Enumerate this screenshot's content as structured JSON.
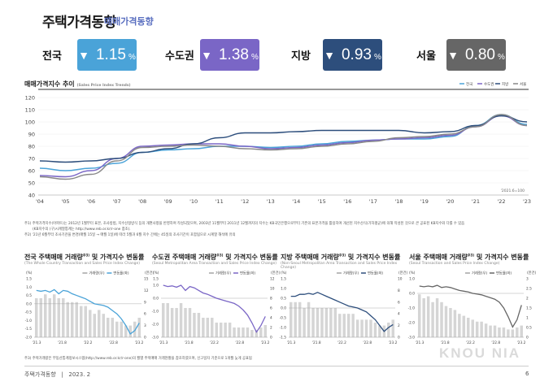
{
  "header": {
    "title": "주택가격동향",
    "subtitle": "매매가격동향"
  },
  "kpis": [
    {
      "label": "전국",
      "value": "1.15",
      "unit": "%",
      "arrow": "▼",
      "color": "#4aa3d8"
    },
    {
      "label": "수도권",
      "value": "1.38",
      "unit": "%",
      "arrow": "▼",
      "color": "#7a66c6"
    },
    {
      "label": "지방",
      "value": "0.93",
      "unit": "%",
      "arrow": "▼",
      "color": "#2d4e7c"
    },
    {
      "label": "서울",
      "value": "0.80",
      "unit": "%",
      "arrow": "▼",
      "color": "#666666"
    }
  ],
  "main_chart": {
    "title": "매매가격지수 추이",
    "title_sub": "(Sales Price Index Trends)",
    "base_note": "'2021.6=100"
  },
  "notes": {
    "line1": "주1) 주택가격지수(아파트)는 2012년 1월부터 표본, 조사방법, 지수산정방식 등의 개편사항을 반영하여 작성되었으며, 2003년 11월부터 2011년 12월까지의 지수는 KB국민은행으로부터 기존의 표본가격을 활용하여 개선된 지수산식(가하평균)에 의해 작성된 것으로 큰 공표된 KB지수와 다를 수 있음",
    "line2": "(KB지수의 (구)시계열통계는 http://www.reb.or.kr/r-one 참조).",
    "line3": "주2) '21년 6월부터 조사기관을 변경(매월 15일 → 매월 1일)에 따라 5월과 6월 지수 간에는 45일의 조사기간이 포함됨으로 시계열 해석에 유의",
    "line4": "주3) 주택거래량은 부동산통계정보시스템(http://www.reb.or.kr/r-one)의 월별 주택매매 거래현황을 참조하였으며, 신고일자 기준으로 1개월 늦게 공표됨"
  },
  "small_panels": [
    {
      "title": "전국 주택매매 거래량",
      "sup": "주3)",
      "title_tail": " 및 가격지수 변동률",
      "sub": "(The Whole Country Transaction and Sales Price Index Change)"
    },
    {
      "title": "수도권 주택매매 거래량",
      "sup": "주3)",
      "title_tail": " 및 가격지수 변동률",
      "sub": "(Seoul Metropolitan Area Transaction and Sales Price Index Change)"
    },
    {
      "title": "지방 주택매매 거래량",
      "sup": "주3)",
      "title_tail": " 및 가격지수 변동률",
      "sub": "(Non-Seoul Metropolitan Area Transaction and Sales Price Index Change)"
    },
    {
      "title": "서울 주택매매 거래량",
      "sup": "주3)",
      "title_tail": " 및 가격지수 변동률",
      "sub": "(Seoul Transaction and Sales Price Index Change)"
    }
  ],
  "footer": {
    "left": "주택가격동향",
    "sep": "|",
    "date": "2023. 2",
    "page": "6",
    "watermark": "KNOU NIA"
  },
  "chart_data": [
    {
      "type": "line",
      "title": "매매가격지수 추이",
      "x": [
        "'04",
        "'05",
        "'06",
        "'07",
        "'08",
        "'09",
        "'10",
        "'11",
        "'12",
        "'13",
        "'14",
        "'15",
        "'16",
        "'17",
        "'18",
        "'19",
        "'20",
        "'21",
        "'22",
        "'23"
      ],
      "ylim": [
        40,
        120
      ],
      "yticks": [
        40,
        50,
        60,
        70,
        80,
        90,
        100,
        110,
        120
      ],
      "legend_position": "top-right",
      "series": [
        {
          "name": "전국",
          "color": "#4aa3d8",
          "values": [
            62,
            60,
            62,
            66,
            75,
            77,
            78,
            80,
            80,
            79,
            80,
            82,
            84,
            85,
            86,
            86,
            88,
            97,
            106,
            98
          ]
        },
        {
          "name": "수도권",
          "color": "#7a66c6",
          "values": [
            56,
            55,
            60,
            70,
            80,
            81,
            82,
            82,
            80,
            78,
            79,
            81,
            83,
            85,
            86,
            87,
            89,
            96,
            105,
            97
          ]
        },
        {
          "name": "지방",
          "color": "#2d4e7c",
          "values": [
            68,
            67,
            68,
            70,
            75,
            78,
            82,
            87,
            91,
            91,
            92,
            93,
            93,
            93,
            93,
            91,
            92,
            97,
            105,
            100
          ]
        },
        {
          "name": "서울",
          "color": "#888888",
          "values": [
            55,
            53,
            57,
            68,
            79,
            80,
            81,
            80,
            78,
            77,
            78,
            80,
            82,
            84,
            87,
            88,
            90,
            96,
            106,
            97
          ]
        }
      ]
    },
    {
      "type": "bar",
      "title": "전국 주택매매 거래량 및 가격지수 변동률",
      "categories": [
        "'21.3",
        "'21.8",
        "'22.2",
        "'22.8",
        "'23.2"
      ],
      "legend": [
        "거래량(우)",
        "변동률(좌)"
      ],
      "left_axis": {
        "label": "(%)",
        "range": [
          -2.0,
          1.5
        ],
        "ticks": [
          -2.0,
          -1.5,
          -1.0,
          -0.5,
          0.0,
          0.5,
          1.0,
          1.5
        ]
      },
      "right_axis": {
        "label": "(만건)",
        "range": [
          0,
          15
        ],
        "ticks": [
          0,
          3,
          6,
          9,
          12,
          15
        ]
      },
      "bars_right": [
        10,
        10,
        11,
        10,
        11,
        10,
        10,
        9,
        9,
        9,
        8,
        8,
        7,
        6,
        7,
        6,
        5,
        5,
        4,
        4,
        3,
        3,
        4,
        5
      ],
      "line_left": [
        0.8,
        0.75,
        0.8,
        0.7,
        0.85,
        0.6,
        0.8,
        0.75,
        0.6,
        0.5,
        0.4,
        0.3,
        0.15,
        0.0,
        -0.05,
        -0.1,
        -0.2,
        -0.4,
        -0.6,
        -0.9,
        -1.3,
        -1.8,
        -1.6,
        -1.15
      ],
      "line_color": "#4aa3d8"
    },
    {
      "type": "bar",
      "title": "수도권 주택매매 거래량 및 가격지수 변동률",
      "categories": [
        "'21.3",
        "'21.8",
        "'22.2",
        "'22.8",
        "'23.2"
      ],
      "legend": [
        "거래량(우)",
        "변동률(좌)"
      ],
      "left_axis": {
        "label": "(%)",
        "range": [
          -3.0,
          1.5
        ],
        "ticks": [
          -3.0,
          -2.0,
          -1.0,
          0.0,
          1.0,
          1.5
        ]
      },
      "right_axis": {
        "label": "(만건)",
        "range": [
          0,
          12
        ],
        "ticks": [
          0,
          2,
          4,
          6,
          8,
          10,
          12
        ]
      },
      "bars_right": [
        7,
        7,
        6,
        6,
        7,
        6,
        6,
        5,
        5,
        4,
        4,
        4,
        3,
        3,
        3,
        3,
        2,
        2,
        2,
        2,
        1.5,
        1.5,
        2,
        2.5
      ],
      "line_left": [
        1.0,
        0.9,
        0.95,
        0.85,
        1.0,
        0.6,
        0.9,
        0.8,
        0.6,
        0.4,
        0.3,
        0.15,
        0.0,
        -0.1,
        -0.2,
        -0.3,
        -0.4,
        -0.6,
        -0.9,
        -1.3,
        -1.9,
        -2.6,
        -2.1,
        -1.4
      ],
      "line_color": "#7a66c6"
    },
    {
      "type": "bar",
      "title": "지방 주택매매 거래량 및 가격지수 변동률",
      "categories": [
        "'21.3",
        "'21.8",
        "'22.2",
        "'22.8",
        "'23.2"
      ],
      "legend": [
        "거래량(우)",
        "변동률(좌)"
      ],
      "left_axis": {
        "label": "(%)",
        "range": [
          -1.5,
          1.5
        ],
        "ticks": [
          -1.5,
          -1.0,
          -0.5,
          0.0,
          0.5,
          1.0,
          1.5
        ]
      },
      "right_axis": {
        "label": "(만건)",
        "range": [
          0,
          10
        ],
        "ticks": [
          0,
          2,
          4,
          6,
          8,
          10
        ]
      },
      "bars_right": [
        6,
        6,
        6,
        5,
        6,
        5,
        5,
        5,
        5,
        5,
        5,
        4,
        4,
        4,
        4,
        3,
        3,
        3,
        3,
        2.5,
        2,
        2,
        2.5,
        3
      ],
      "line_left": [
        0.6,
        0.6,
        0.7,
        0.7,
        0.75,
        0.7,
        0.8,
        0.7,
        0.6,
        0.5,
        0.4,
        0.3,
        0.2,
        0.1,
        0.05,
        0.0,
        -0.1,
        -0.2,
        -0.4,
        -0.6,
        -0.9,
        -1.2,
        -1.0,
        -0.85
      ],
      "line_color": "#2d4e7c"
    },
    {
      "type": "bar",
      "title": "서울 주택매매 거래량 및 가격지수 변동률",
      "categories": [
        "'21.3",
        "'21.8",
        "'22.2",
        "'22.8",
        "'23.2"
      ],
      "legend": [
        "거래량(우)",
        "변동률(좌)"
      ],
      "left_axis": {
        "label": "(%)",
        "range": [
          -3.0,
          1.0
        ],
        "ticks": [
          -3.0,
          -2.0,
          -1.0,
          0.0,
          1.0
        ]
      },
      "right_axis": {
        "label": "(만건)",
        "range": [
          0,
          3.0
        ],
        "ticks": [
          0,
          0.5,
          1.0,
          1.5,
          2.0,
          2.5,
          3.0
        ]
      },
      "bars_right": [
        2.2,
        2.0,
        2.1,
        1.8,
        2.0,
        1.8,
        1.6,
        1.5,
        1.4,
        1.2,
        1.1,
        1.0,
        0.9,
        0.8,
        0.8,
        0.7,
        0.6,
        0.6,
        0.5,
        0.5,
        0.4,
        0.4,
        0.5,
        0.6
      ],
      "line_left": [
        0.5,
        0.45,
        0.5,
        0.45,
        0.55,
        0.4,
        0.45,
        0.4,
        0.3,
        0.2,
        0.15,
        0.1,
        0.0,
        -0.05,
        -0.1,
        -0.2,
        -0.3,
        -0.4,
        -0.6,
        -1.0,
        -1.6,
        -2.3,
        -1.8,
        -0.8
      ],
      "line_color": "#666666"
    }
  ]
}
